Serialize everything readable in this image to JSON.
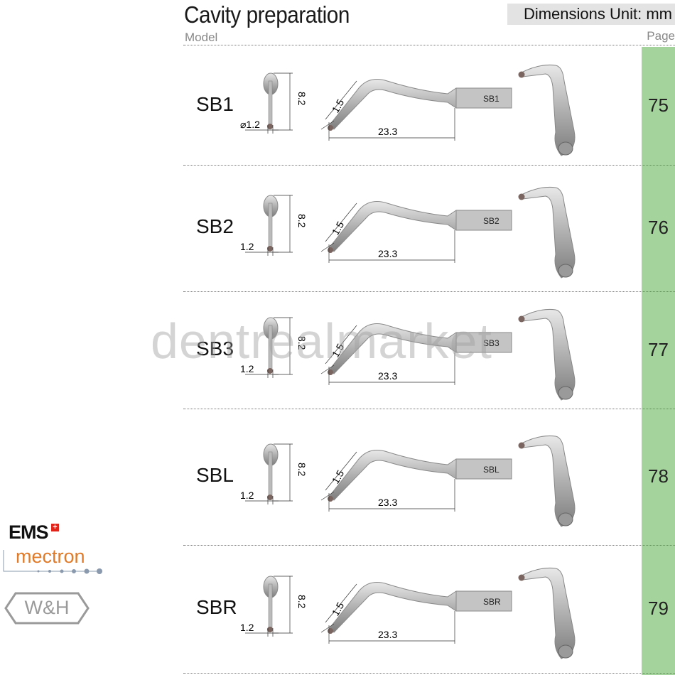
{
  "header": {
    "title": "Cavity preparation",
    "units": "Dimensions Unit: mm",
    "col_model": "Model",
    "col_page": "Page"
  },
  "rows": [
    {
      "model": "SB1",
      "page": "75",
      "tip_diameter": "⌀1.2",
      "tip_height": "8.2",
      "angle_dim": "1.5",
      "length": "23.3",
      "shank_label": "SB1"
    },
    {
      "model": "SB2",
      "page": "76",
      "tip_diameter": "1.2",
      "tip_height": "8.2",
      "angle_dim": "1.5",
      "length": "23.3",
      "shank_label": "SB2"
    },
    {
      "model": "SB3",
      "page": "77",
      "tip_diameter": "1.2",
      "tip_height": "8.2",
      "angle_dim": "1.5",
      "length": "23.3",
      "shank_label": "SB3"
    },
    {
      "model": "SBL",
      "page": "78",
      "tip_diameter": "1.2",
      "tip_height": "8.2",
      "angle_dim": "1.5",
      "length": "23.3",
      "shank_label": "SBL"
    },
    {
      "model": "SBR",
      "page": "79",
      "tip_diameter": "1.2",
      "tip_height": "8.2",
      "angle_dim": "1.5",
      "length": "23.3",
      "shank_label": "SBR"
    }
  ],
  "logos": {
    "ems": "EMS",
    "mectron": "mectron",
    "wh": "W&H"
  },
  "watermark": "dentrealmarket",
  "colors": {
    "page_column": "#a4d49c",
    "units_bg": "#e3e3e3",
    "mectron_orange": "#e07b2a",
    "ems_red": "#e2231a"
  }
}
